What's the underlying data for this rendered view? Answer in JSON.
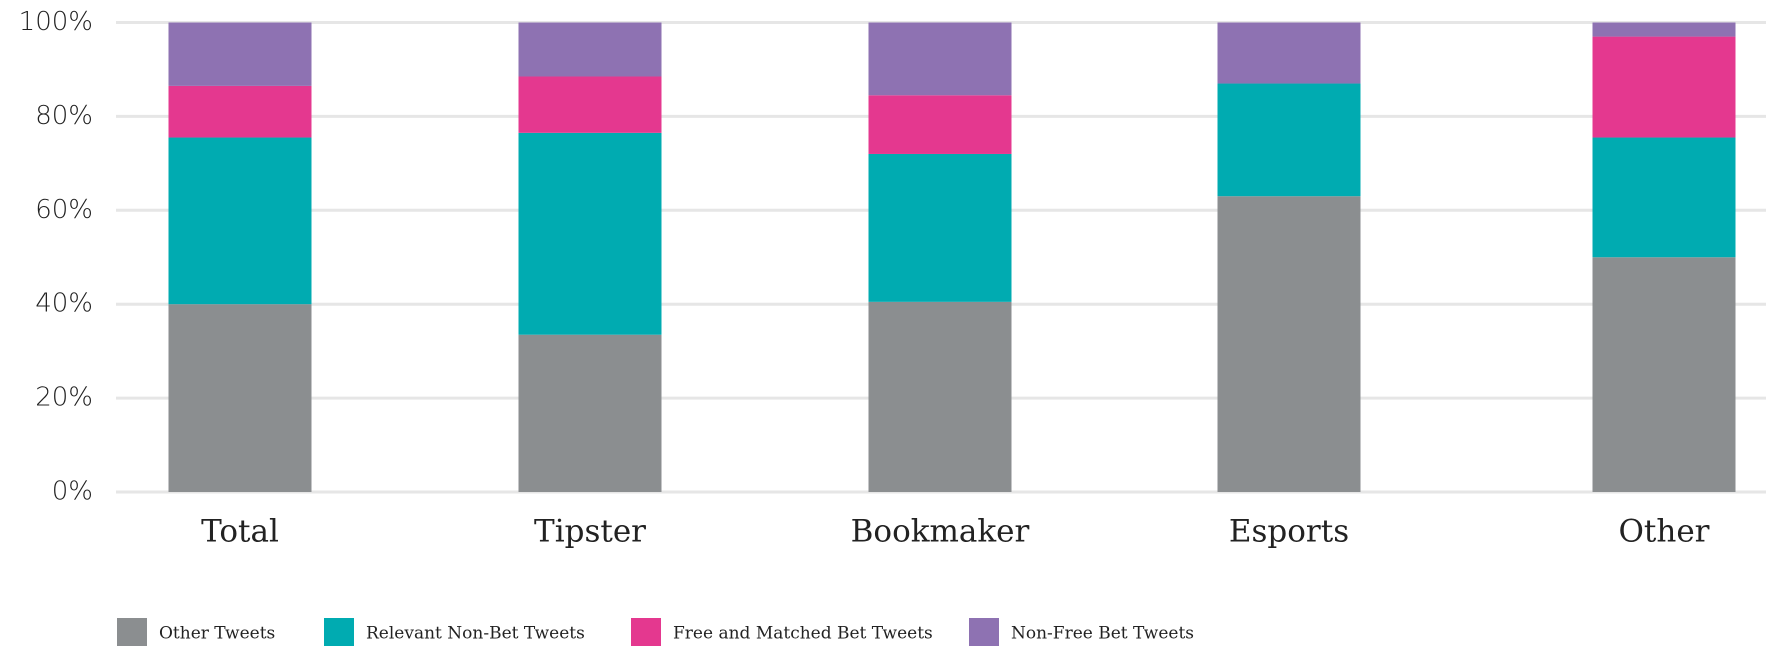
{
  "chart_data": {
    "type": "stacked_bar",
    "categories": [
      "Total",
      "Tipster",
      "Bookmaker",
      "Esports",
      "Other"
    ],
    "series": [
      {
        "name": "Other Tweets",
        "color": "#8b8e90",
        "values": [
          40,
          33.5,
          40.5,
          63,
          50
        ]
      },
      {
        "name": "Relevant Non-Bet Tweets",
        "color": "#00abb1",
        "values": [
          35.5,
          43,
          31.5,
          24,
          25.5
        ]
      },
      {
        "name": "Free and Matched Bet Tweets",
        "color": "#e4388f",
        "values": [
          11,
          12,
          12.5,
          0,
          21.5
        ]
      },
      {
        "name": "Non-Free Bet Tweets",
        "color": "#8e72b2",
        "values": [
          13.5,
          11.5,
          15.5,
          13,
          3
        ]
      }
    ],
    "ylim": [
      0,
      100
    ],
    "yticks": [
      {
        "value": 0,
        "label": "0%"
      },
      {
        "value": 20,
        "label": "20%"
      },
      {
        "value": 40,
        "label": "40%"
      },
      {
        "value": 60,
        "label": "60%"
      },
      {
        "value": 80,
        "label": "80%"
      },
      {
        "value": 100,
        "label": "100%"
      }
    ],
    "grid": true,
    "legend": "bottom"
  }
}
